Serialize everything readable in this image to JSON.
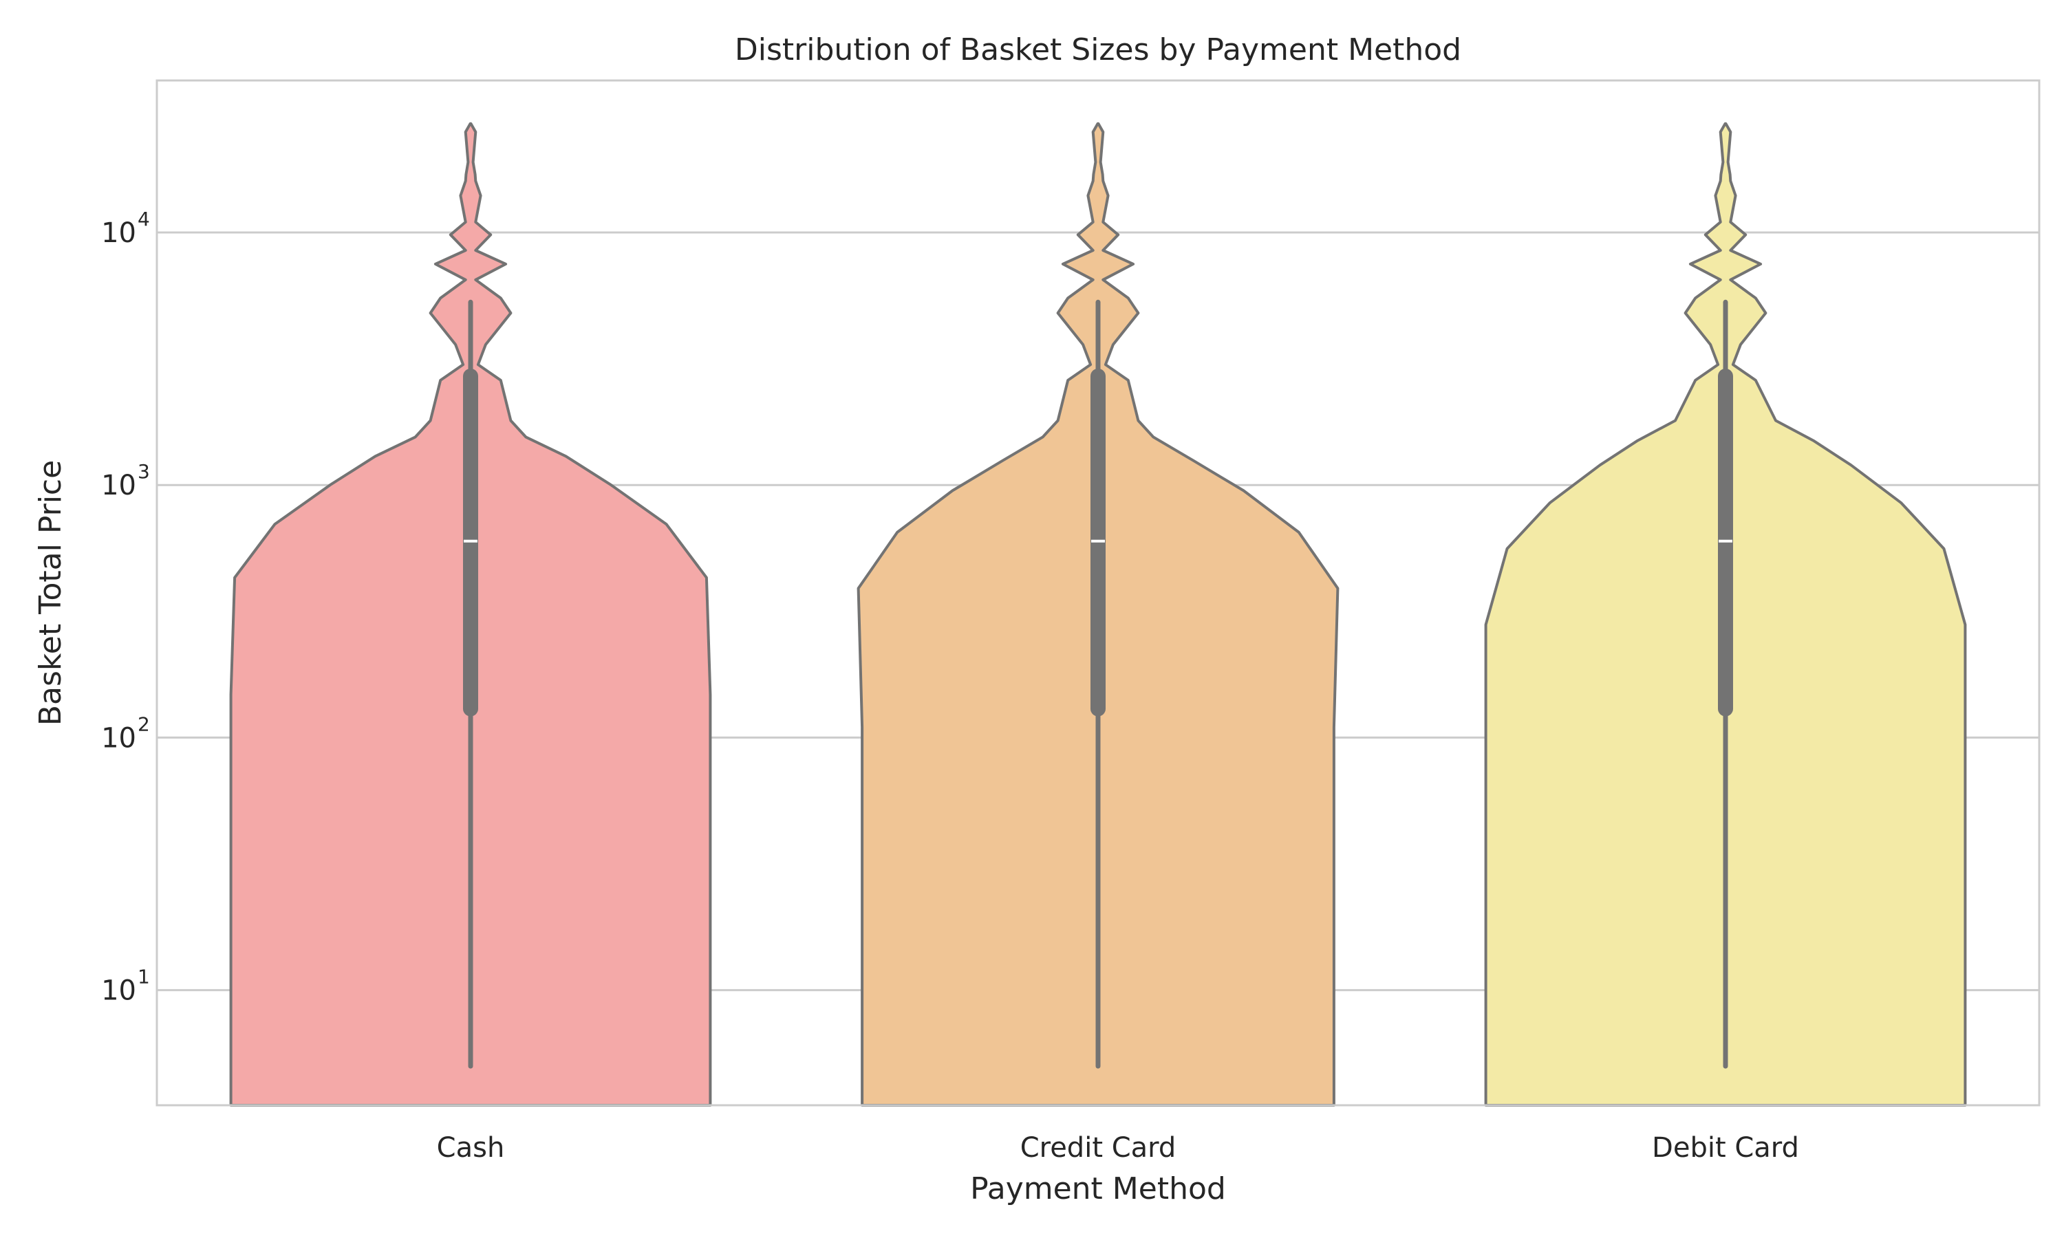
{
  "chart_data": {
    "type": "violin",
    "title": "Distribution of Basket Sizes by Payment Method",
    "xlabel": "Payment Method",
    "ylabel": "Basket Total Price",
    "yscale": "log",
    "ylim": [
      3.5,
      40000
    ],
    "yticks": [
      {
        "value": 10,
        "base": "10",
        "exp": "1"
      },
      {
        "value": 100,
        "base": "10",
        "exp": "2"
      },
      {
        "value": 1000,
        "base": "10",
        "exp": "3"
      },
      {
        "value": 10000,
        "base": "10",
        "exp": "4"
      }
    ],
    "grid": true,
    "categories": [
      "Cash",
      "Credit Card",
      "Debit Card"
    ],
    "colors": [
      "#f4a9a8",
      "#f0c595",
      "#f3eaa6"
    ],
    "box": {
      "whisker_low": 5,
      "q1": 130,
      "median": 600,
      "q3": 2700,
      "whisker_high": 5300
    },
    "density_profiles": [
      [
        [
          3.5,
          0.955
        ],
        [
          148,
          0.955
        ],
        [
          430,
          0.94
        ],
        [
          700,
          0.78
        ],
        [
          1000,
          0.56
        ],
        [
          1300,
          0.38
        ],
        [
          1550,
          0.22
        ],
        [
          1800,
          0.16
        ],
        [
          2600,
          0.12
        ],
        [
          3000,
          0.03
        ],
        [
          3600,
          0.06
        ],
        [
          4800,
          0.16
        ],
        [
          5500,
          0.12
        ],
        [
          6500,
          0.02
        ],
        [
          7500,
          0.14
        ],
        [
          8500,
          0.02
        ],
        [
          9800,
          0.08
        ],
        [
          11000,
          0.02
        ],
        [
          14000,
          0.04
        ],
        [
          16000,
          0.02
        ],
        [
          17000,
          0.018
        ],
        [
          19000,
          0.01
        ],
        [
          25000,
          0.02
        ],
        [
          27000,
          0.001
        ]
      ],
      [
        [
          3.5,
          0.94
        ],
        [
          110,
          0.94
        ],
        [
          390,
          0.955
        ],
        [
          650,
          0.8
        ],
        [
          950,
          0.58
        ],
        [
          1250,
          0.38
        ],
        [
          1550,
          0.22
        ],
        [
          1800,
          0.16
        ],
        [
          2600,
          0.12
        ],
        [
          3000,
          0.03
        ],
        [
          3600,
          0.06
        ],
        [
          4800,
          0.16
        ],
        [
          5500,
          0.12
        ],
        [
          6500,
          0.02
        ],
        [
          7500,
          0.14
        ],
        [
          8500,
          0.02
        ],
        [
          9800,
          0.08
        ],
        [
          11000,
          0.02
        ],
        [
          14000,
          0.04
        ],
        [
          16000,
          0.02
        ],
        [
          17000,
          0.018
        ],
        [
          19000,
          0.01
        ],
        [
          25000,
          0.02
        ],
        [
          27000,
          0.001
        ]
      ],
      [
        [
          3.5,
          0.955
        ],
        [
          280,
          0.955
        ],
        [
          560,
          0.87
        ],
        [
          850,
          0.7
        ],
        [
          1200,
          0.5
        ],
        [
          1500,
          0.35
        ],
        [
          1800,
          0.2
        ],
        [
          2600,
          0.12
        ],
        [
          3000,
          0.03
        ],
        [
          3600,
          0.06
        ],
        [
          4800,
          0.16
        ],
        [
          5500,
          0.12
        ],
        [
          6500,
          0.02
        ],
        [
          7500,
          0.14
        ],
        [
          8500,
          0.02
        ],
        [
          9800,
          0.08
        ],
        [
          11000,
          0.02
        ],
        [
          14000,
          0.04
        ],
        [
          16000,
          0.02
        ],
        [
          17000,
          0.018
        ],
        [
          19000,
          0.01
        ],
        [
          25000,
          0.02
        ],
        [
          27000,
          0.001
        ]
      ]
    ]
  }
}
